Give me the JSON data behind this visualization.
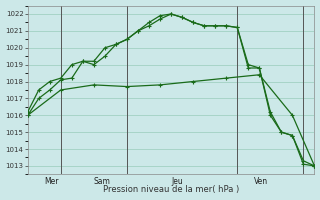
{
  "background_color": "#cce8e8",
  "grid_color": "#99ccbb",
  "line_color": "#1a6b1a",
  "xlabel": "Pression niveau de la mer( hPa )",
  "ylim": [
    1012.5,
    1022.5
  ],
  "yticks": [
    1013,
    1014,
    1015,
    1016,
    1017,
    1018,
    1019,
    1020,
    1021,
    1022
  ],
  "day_labels": [
    "Mer",
    "Sam",
    "Jeu",
    "Ven"
  ],
  "day_positions": [
    0,
    6,
    16,
    22
  ],
  "vline_positions": [
    3,
    9,
    19,
    25
  ],
  "series1_x": [
    0,
    1,
    2,
    3,
    4,
    5,
    6,
    7,
    8,
    9,
    10,
    11,
    12,
    13,
    14,
    15,
    16,
    17,
    18,
    19,
    20,
    21,
    22,
    23,
    24,
    25,
    26
  ],
  "series1_y": [
    1016.0,
    1017.0,
    1017.5,
    1018.1,
    1018.2,
    1019.2,
    1019.0,
    1019.5,
    1020.2,
    1020.5,
    1021.0,
    1021.5,
    1021.9,
    1022.0,
    1021.8,
    1021.5,
    1021.3,
    1021.3,
    1021.3,
    1021.2,
    1019.0,
    1018.8,
    1016.2,
    1015.0,
    1014.8,
    1013.1,
    1013.0
  ],
  "series2_x": [
    0,
    1,
    2,
    3,
    4,
    5,
    6,
    7,
    8,
    9,
    10,
    11,
    12,
    13,
    14,
    15,
    16,
    17,
    18,
    19,
    20,
    21,
    22,
    23,
    24,
    25,
    26
  ],
  "series2_y": [
    1016.2,
    1017.5,
    1018.0,
    1018.2,
    1019.0,
    1019.2,
    1019.2,
    1020.0,
    1020.2,
    1020.5,
    1021.0,
    1021.3,
    1021.7,
    1022.0,
    1021.8,
    1021.5,
    1021.3,
    1021.3,
    1021.3,
    1021.2,
    1018.8,
    1018.8,
    1016.0,
    1015.0,
    1014.8,
    1013.3,
    1013.0
  ],
  "series3_x": [
    0,
    3,
    6,
    9,
    12,
    15,
    18,
    21,
    24,
    26
  ],
  "series3_y": [
    1016.0,
    1017.5,
    1017.8,
    1017.7,
    1017.8,
    1018.0,
    1018.2,
    1018.4,
    1016.0,
    1013.0
  ]
}
